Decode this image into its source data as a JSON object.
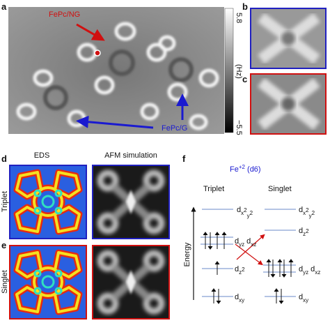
{
  "panels": [
    "a",
    "b",
    "c",
    "d",
    "e",
    "f"
  ],
  "panel_a": {
    "label_ng": "FePc/NG",
    "label_g": "FePc/G",
    "colorbar_max": "5.8",
    "colorbar_unit": "(Hz)",
    "colorbar_min": "−5.5"
  },
  "panel_de": {
    "col1": "EDS",
    "col2": "AFM simulation",
    "row1": "Triplet",
    "row2": "Singlet"
  },
  "panel_f": {
    "ion": [
      "Fe",
      "+2",
      " (d6)"
    ],
    "col1": "Triplet",
    "col2": "Singlet",
    "axis": "Energy",
    "triplet": {
      "x2y2": [
        "d",
        "x",
        "2",
        "y",
        "2"
      ],
      "yzxz": [
        "d",
        "yz",
        " d",
        "xz"
      ],
      "z2": [
        "d",
        "z",
        "2"
      ],
      "xy": [
        "d",
        "xy"
      ]
    },
    "singlet": {
      "x2y2": [
        "d",
        "x",
        "2",
        "y",
        "2"
      ],
      "z2": [
        "d",
        "z",
        "2"
      ],
      "yzxz": [
        "d",
        "yz",
        " d",
        "xz"
      ],
      "xy": [
        "d",
        "xy"
      ]
    }
  }
}
